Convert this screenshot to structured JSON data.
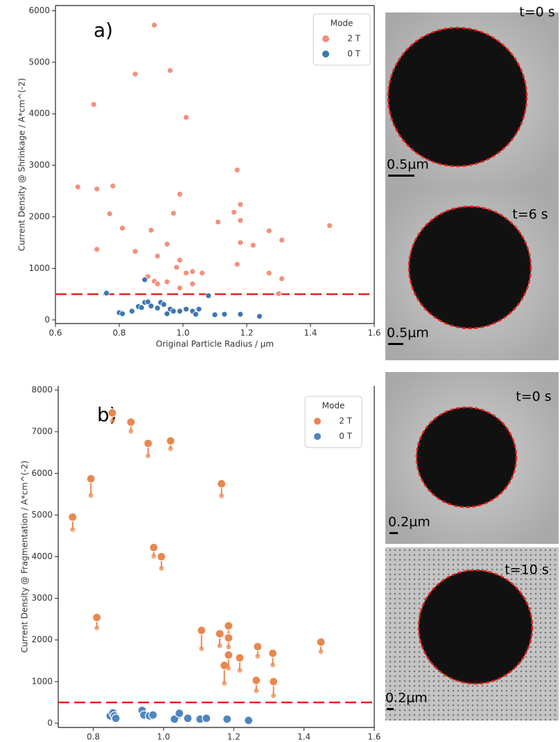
{
  "chart_data": [
    {
      "type": "scatter",
      "annotation": "a)",
      "x_label": "Original Particle Radius / µm",
      "y_label": "Current Density @ Shrinkage / A*cm^(-2)",
      "legend_title": "Mode",
      "legend": "upper right",
      "xlim": [
        0.6,
        1.6
      ],
      "xticks": [
        0.6,
        0.8,
        {
          "value": 1,
          "label": "1.0"
        },
        1.2,
        1.4,
        1.6
      ],
      "ylim": [
        -70,
        6100
      ],
      "yticks": [
        0,
        1000,
        2000,
        3000,
        4000,
        5000,
        6000
      ],
      "threshold": 500,
      "threshold_color": "#e5231b",
      "series": [
        {
          "name": "2 T",
          "color": "#f3907c",
          "x": [
            0.91,
            0.85,
            0.96,
            0.72,
            1.01,
            0.67,
            0.73,
            0.78,
            1.17,
            0.99,
            0.77,
            0.81,
            0.9,
            0.97,
            1.16,
            1.18,
            1.18,
            1.11,
            1.27,
            1.46,
            1.31,
            0.73,
            0.85,
            0.95,
            0.92,
            0.98,
            0.99,
            1.17,
            1.22,
            1.18,
            0.89,
            0.91,
            0.92,
            0.95,
            1.01,
            1.03,
            1.06,
            1.03,
            0.99,
            1.27,
            1.31,
            1.3
          ],
          "values": [
            5720,
            4770,
            4840,
            4180,
            3930,
            2580,
            2540,
            2600,
            2910,
            2440,
            2060,
            1780,
            1740,
            2070,
            2090,
            2240,
            1930,
            1900,
            1730,
            1830,
            1550,
            1370,
            1330,
            1470,
            1240,
            1020,
            1160,
            1080,
            1450,
            1500,
            840,
            750,
            700,
            740,
            910,
            940,
            910,
            700,
            620,
            910,
            800,
            510
          ]
        },
        {
          "name": "0 T",
          "color": "#3b77b3",
          "x": [
            0.76,
            0.88,
            0.8,
            0.81,
            0.84,
            0.86,
            0.87,
            0.88,
            0.89,
            0.9,
            0.93,
            0.94,
            0.95,
            0.96,
            0.97,
            0.99,
            1.01,
            1.03,
            1.04,
            1.05,
            1.08,
            1.1,
            1.13,
            1.18,
            1.24,
            0.92
          ],
          "values": [
            520,
            780,
            140,
            120,
            170,
            260,
            240,
            340,
            350,
            270,
            340,
            300,
            120,
            210,
            170,
            170,
            210,
            170,
            110,
            210,
            470,
            100,
            110,
            110,
            70,
            230
          ]
        }
      ]
    },
    {
      "type": "lollipop",
      "annotation": "b)",
      "x_label": "Original Particle Radius / µm",
      "y_label": "Current Density @ Fragmentation / A*cm^(-2)",
      "legend_title": "Mode",
      "legend": "upper right",
      "xlim": [
        0.7,
        1.6
      ],
      "xticks": [
        0.8,
        {
          "value": 1,
          "label": "1.0"
        },
        1.2,
        1.4,
        1.6
      ],
      "ylim": [
        -100,
        8100
      ],
      "yticks": [
        0,
        1000,
        2000,
        3000,
        4000,
        5000,
        6000,
        7000,
        8000
      ],
      "threshold": 500,
      "threshold_color": "#e5231b",
      "series": [
        {
          "name": "2 T",
          "color": "#e9874e",
          "x": [
            0.741,
            0.793,
            0.81,
            0.854,
            0.907,
            0.956,
            0.972,
            0.994,
            1.02,
            1.108,
            1.165,
            1.16,
            1.173,
            1.185,
            1.185,
            1.185,
            1.217,
            1.268,
            1.264,
            1.311,
            1.313,
            1.448
          ],
          "values": [
            4950,
            5870,
            2540,
            7450,
            7230,
            6720,
            4220,
            4000,
            6780,
            2230,
            5750,
            2150,
            1390,
            2340,
            2050,
            1640,
            1570,
            1840,
            1030,
            1680,
            1000,
            1950
          ],
          "lower": [
            4650,
            5470,
            2290,
            7260,
            7010,
            6420,
            4010,
            3720,
            6590,
            1790,
            5460,
            1860,
            960,
            2130,
            1830,
            1320,
            1270,
            1610,
            780,
            1400,
            660,
            1720
          ]
        },
        {
          "name": "0 T",
          "color": "#4f86c0",
          "x": [
            0.848,
            0.856,
            0.86,
            0.864,
            0.939,
            0.944,
            0.96,
            0.97,
            1.031,
            1.045,
            1.069,
            1.104,
            1.122,
            1.181,
            1.242
          ],
          "values": [
            180,
            250,
            180,
            120,
            310,
            200,
            180,
            200,
            100,
            240,
            120,
            100,
            120,
            100,
            70
          ],
          "lower": [
            120,
            190,
            120,
            70,
            240,
            140,
            120,
            140,
            50,
            170,
            70,
            50,
            70,
            50,
            20
          ]
        }
      ]
    }
  ],
  "images": [
    {
      "time": "t=0 s",
      "scale": "0.5µm"
    },
    {
      "time": "t=6 s",
      "scale": "0.5µm"
    },
    {
      "time": "t=0 s",
      "scale": "0.2µm"
    },
    {
      "time": "t=10 s",
      "scale": "0.2µm"
    }
  ]
}
